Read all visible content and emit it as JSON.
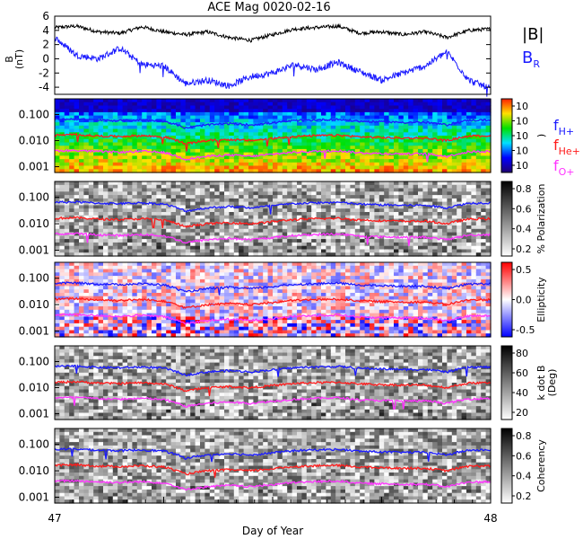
{
  "title": "ACE Mag 0020-02-16",
  "colors": {
    "bmag": "#000000",
    "br": "#1a1aff",
    "fHplus": "#1a1aff",
    "fHeplus": "#ff1a1a",
    "fOplus": "#ff33ff"
  },
  "legend_top": {
    "bmag_label": "|B|",
    "br_label": "B",
    "br_sub": "R"
  },
  "legend_freq": {
    "h_label": "f",
    "h_sub": "H+",
    "he_label": "f",
    "he_sub": "He+",
    "o_label": "f",
    "o_sub": "O+"
  },
  "chart_data": [
    {
      "type": "line",
      "panel": "B-field",
      "ylabel": "B",
      "yunit": "(nT)",
      "ylim": [
        -5,
        6
      ],
      "yticks": [
        "6",
        "4",
        "2",
        "0",
        "-2",
        "-4"
      ],
      "x_range": [
        47,
        48
      ],
      "series": [
        {
          "name": "|B|",
          "x": [
            47.0,
            47.05,
            47.1,
            47.15,
            47.2,
            47.25,
            47.3,
            47.35,
            47.4,
            47.45,
            47.5,
            47.55,
            47.6,
            47.65,
            47.7,
            47.75,
            47.8,
            47.85,
            47.9,
            47.95,
            48.0
          ],
          "values": [
            4.4,
            4.6,
            3.8,
            3.6,
            4.5,
            3.8,
            3.4,
            3.8,
            3.0,
            2.6,
            3.4,
            4.2,
            4.4,
            4.6,
            3.6,
            3.8,
            3.4,
            3.8,
            3.0,
            4.0,
            4.2
          ]
        },
        {
          "name": "B_R",
          "x": [
            47.0,
            47.05,
            47.1,
            47.15,
            47.2,
            47.25,
            47.3,
            47.35,
            47.4,
            47.45,
            47.5,
            47.55,
            47.6,
            47.65,
            47.7,
            47.75,
            47.8,
            47.85,
            47.9,
            47.95,
            48.0
          ],
          "values": [
            3.0,
            0.5,
            0.0,
            1.5,
            -0.8,
            -1.0,
            -3.5,
            -3.0,
            -3.8,
            -2.5,
            -2.0,
            -0.8,
            -1.5,
            -0.5,
            -1.8,
            -3.0,
            -2.0,
            -1.0,
            1.0,
            -3.0,
            -4.2
          ]
        }
      ]
    },
    {
      "type": "heatmap",
      "panel": "power-spectrum",
      "yticks": [
        "0.100",
        "0.010",
        "0.001"
      ],
      "colorbar_ticks": [
        "10",
        "10",
        "10",
        "10",
        "10"
      ],
      "colorbar_label": ")",
      "colorscale": "rainbow",
      "x_range": [
        47,
        48
      ]
    },
    {
      "type": "heatmap",
      "panel": "polarization",
      "yticks": [
        "0.100",
        "0.010",
        "0.001"
      ],
      "colorbar_ticks": [
        "0.8",
        "0.6",
        "0.4",
        "0.2"
      ],
      "colorbar_label": "% Polarization",
      "colorscale": "gray",
      "x_range": [
        47,
        48
      ]
    },
    {
      "type": "heatmap",
      "panel": "ellipticity",
      "yticks": [
        "0.100",
        "0.010",
        "0.001"
      ],
      "colorbar_ticks": [
        "0.5",
        "0.0",
        "-0.5"
      ],
      "colorbar_label": "Ellipticity",
      "colorscale": "blue-white-red",
      "x_range": [
        47,
        48
      ]
    },
    {
      "type": "heatmap",
      "panel": "k-dot-b",
      "yticks": [
        "0.100",
        "0.010",
        "0.001"
      ],
      "colorbar_ticks": [
        "80",
        "60",
        "40",
        "20"
      ],
      "colorbar_label": "k dot B",
      "colorbar_unit": "(Deg)",
      "colorscale": "gray",
      "x_range": [
        47,
        48
      ]
    },
    {
      "type": "heatmap",
      "panel": "coherency",
      "yticks": [
        "0.100",
        "0.010",
        "0.001"
      ],
      "colorbar_ticks": [
        "0.8",
        "0.6",
        "0.4",
        "0.2"
      ],
      "colorbar_label": "Coherency",
      "colorscale": "gray",
      "x_range": [
        47,
        48
      ]
    }
  ],
  "gyrofrequency_lines": {
    "x": [
      47.0,
      47.05,
      47.1,
      47.15,
      47.2,
      47.25,
      47.3,
      47.35,
      47.4,
      47.45,
      47.5,
      47.55,
      47.6,
      47.65,
      47.7,
      47.75,
      47.8,
      47.85,
      47.9,
      47.95,
      48.0
    ],
    "fH": [
      0.065,
      0.067,
      0.06,
      0.058,
      0.062,
      0.056,
      0.03,
      0.04,
      0.045,
      0.04,
      0.048,
      0.058,
      0.062,
      0.065,
      0.055,
      0.052,
      0.05,
      0.05,
      0.04,
      0.06,
      0.062
    ],
    "fHe": [
      0.016,
      0.017,
      0.015,
      0.0145,
      0.0155,
      0.014,
      0.0075,
      0.01,
      0.011,
      0.01,
      0.012,
      0.0145,
      0.0155,
      0.016,
      0.014,
      0.013,
      0.0125,
      0.0125,
      0.01,
      0.015,
      0.0155
    ],
    "fO": [
      0.0041,
      0.0042,
      0.0038,
      0.0036,
      0.0039,
      0.0035,
      0.0019,
      0.0025,
      0.0028,
      0.0025,
      0.003,
      0.0036,
      0.0039,
      0.0041,
      0.0034,
      0.0032,
      0.0031,
      0.0031,
      0.0025,
      0.0037,
      0.0039
    ]
  },
  "x_axis": {
    "label": "Day of Year",
    "tick_start": "47",
    "tick_end": "48"
  }
}
